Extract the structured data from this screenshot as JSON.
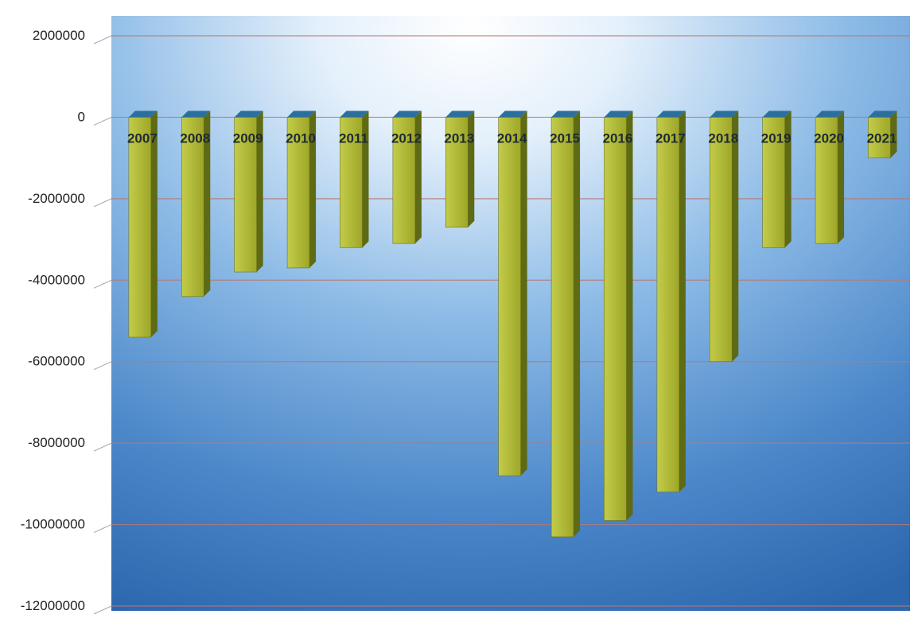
{
  "chart_data": {
    "type": "bar",
    "title": "",
    "xlabel": "",
    "ylabel": "",
    "ylim": [
      -12000000,
      2000000
    ],
    "yticks": [
      2000000,
      0,
      -2000000,
      -4000000,
      -6000000,
      -8000000,
      -10000000,
      -12000000
    ],
    "ytick_labels": [
      "2000000",
      "0",
      "-2000000",
      "-4000000",
      "-6000000",
      "-8000000",
      "-10000000",
      "-12000000"
    ],
    "categories": [
      "2007",
      "2008",
      "2009",
      "2010",
      "2011",
      "2012",
      "2013",
      "2014",
      "2015",
      "2016",
      "2017",
      "2018",
      "2019",
      "2020",
      "2021"
    ],
    "values": [
      -5400000,
      -4400000,
      -3800000,
      -3700000,
      -3200000,
      -3100000,
      -2700000,
      -8800000,
      -10300000,
      -9900000,
      -9200000,
      -6000000,
      -3200000,
      -3100000,
      -1000000
    ],
    "grid": true,
    "legend": "none",
    "colors": {
      "bar_front": "#a9b42c",
      "bar_side": "#5e6a14",
      "bar_top": "#2d6f9c",
      "plot_bg_top": "#ffffff",
      "plot_bg_bottom": "#2f6fb3",
      "grid_line": "#b57a78",
      "axis_text": "#222222"
    }
  }
}
